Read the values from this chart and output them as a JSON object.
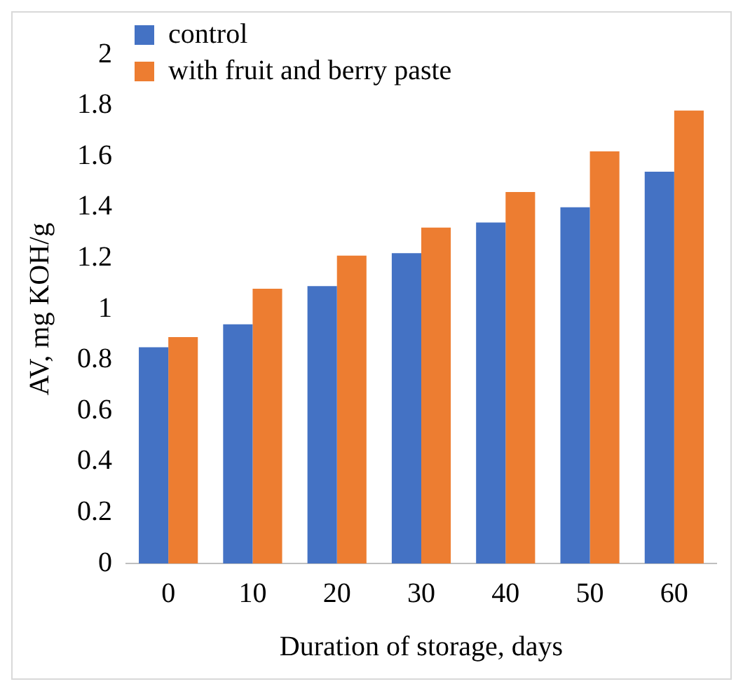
{
  "chart_data": {
    "type": "bar",
    "xlabel": "Duration of storage, days",
    "ylabel": "AV, mg KOH/g",
    "categories": [
      "0",
      "10",
      "20",
      "30",
      "40",
      "50",
      "60"
    ],
    "series": [
      {
        "name": "control",
        "color": "#4472c4",
        "values": [
          0.85,
          0.94,
          1.09,
          1.22,
          1.34,
          1.4,
          1.54
        ]
      },
      {
        "name": "with fruit and berry paste",
        "color": "#ed7d31",
        "values": [
          0.89,
          1.08,
          1.21,
          1.32,
          1.46,
          1.62,
          1.78
        ]
      }
    ],
    "ylim": [
      0,
      2
    ],
    "yticks": [
      0,
      0.2,
      0.4,
      0.6,
      0.8,
      1,
      1.2,
      1.4,
      1.6,
      1.8,
      2
    ],
    "grid": false,
    "legend": "top left"
  }
}
